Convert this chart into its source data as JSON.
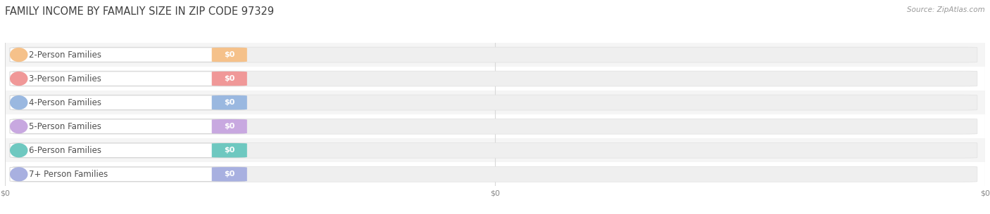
{
  "title": "FAMILY INCOME BY FAMALIY SIZE IN ZIP CODE 97329",
  "source_text": "Source: ZipAtlas.com",
  "categories": [
    "2-Person Families",
    "3-Person Families",
    "4-Person Families",
    "5-Person Families",
    "6-Person Families",
    "7+ Person Families"
  ],
  "values": [
    0,
    0,
    0,
    0,
    0,
    0
  ],
  "bar_colors": [
    "#f5c18a",
    "#f09898",
    "#9ab8e0",
    "#c8a8e0",
    "#6ec8c0",
    "#a8b0e0"
  ],
  "bar_bg_color": "#f2f2f2",
  "bar_outline_color": "#e0e0e0",
  "background_color": "#ffffff",
  "row_alt_color": "#f8f8f8",
  "grid_color": "#d8d8d8",
  "title_color": "#404040",
  "label_color": "#505050",
  "value_label_color": "#ffffff",
  "xlim": [
    0,
    1
  ],
  "bar_height": 0.72,
  "value_fontsize": 8,
  "label_fontsize": 8.5,
  "title_fontsize": 10.5
}
